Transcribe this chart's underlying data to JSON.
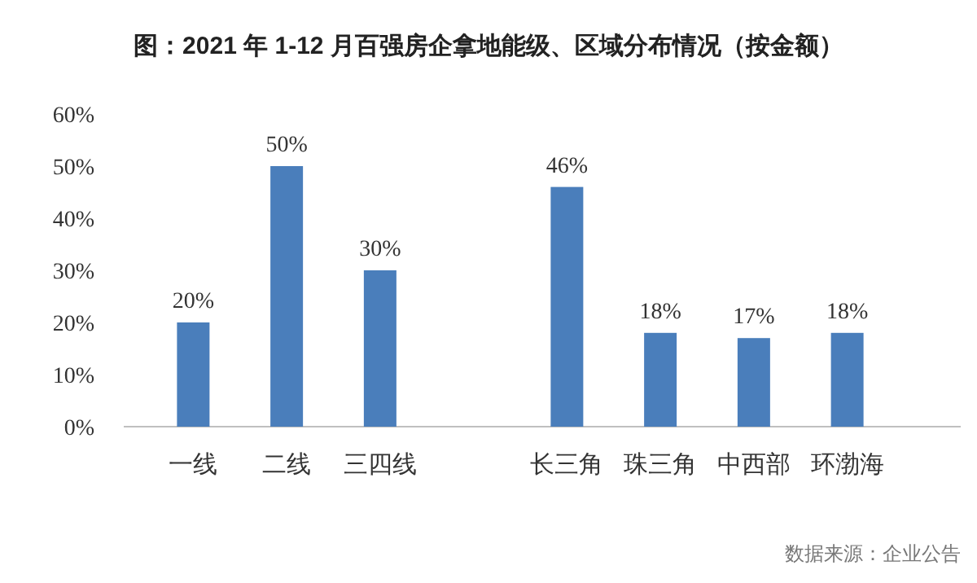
{
  "chart_data": {
    "type": "bar",
    "title": "图：2021 年 1-12 月百强房企拿地能级、区域分布情况（按金额）",
    "categories": [
      "一线",
      "二线",
      "三四线",
      null,
      "长三角",
      "珠三角",
      "中西部",
      "环渤海"
    ],
    "values": [
      20,
      50,
      30,
      null,
      46,
      18,
      17,
      18
    ],
    "value_labels": [
      "20%",
      "50%",
      "30%",
      null,
      "46%",
      "18%",
      "17%",
      "18%"
    ],
    "color": "#4a7ebb",
    "ylim": [
      0,
      60
    ],
    "yticks": [
      {
        "value": 0,
        "label": "0%"
      },
      {
        "value": 10,
        "label": "10%"
      },
      {
        "value": 20,
        "label": "20%"
      },
      {
        "value": 30,
        "label": "30%"
      },
      {
        "value": 40,
        "label": "40%"
      },
      {
        "value": 50,
        "label": "50%"
      },
      {
        "value": 60,
        "label": "60%"
      }
    ],
    "grid": false,
    "annotations": [
      "数据来源：企业公告"
    ]
  }
}
